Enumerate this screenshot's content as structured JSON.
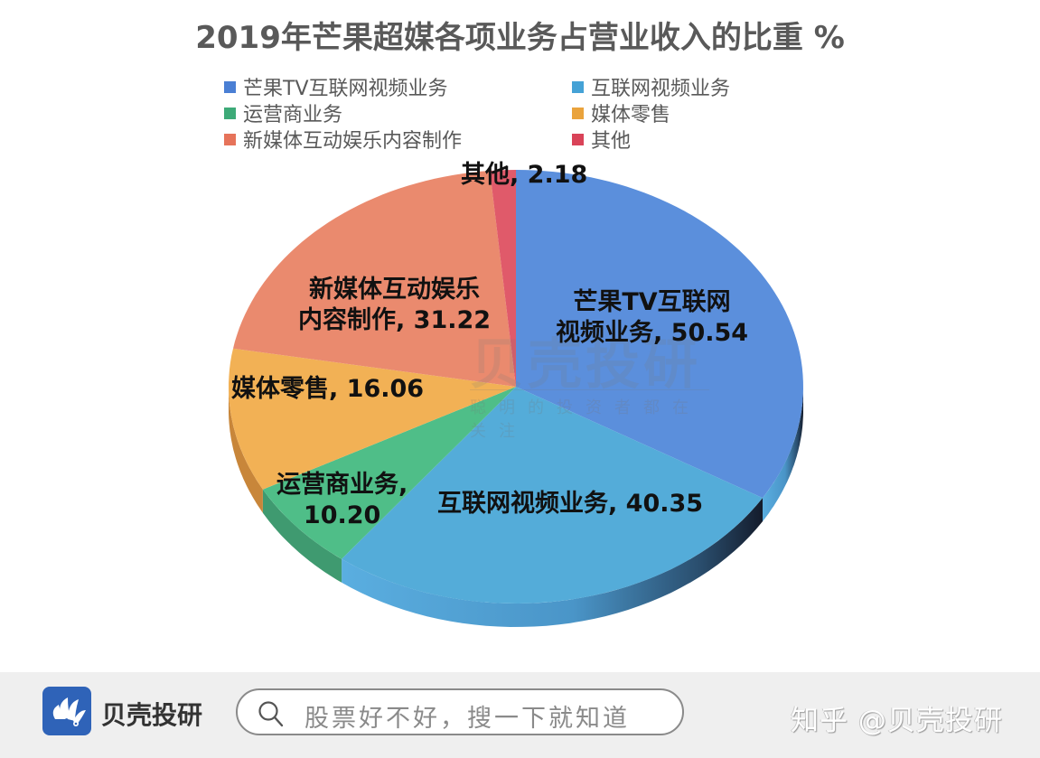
{
  "title": "2019年芒果超媒各项业务占营业收入的比重 %",
  "legend": [
    {
      "label": "芒果TV互联网视频业务",
      "color": "#4a7fd4"
    },
    {
      "label": "互联网视频业务",
      "color": "#45a2d6"
    },
    {
      "label": "运营商业务",
      "color": "#3daa78"
    },
    {
      "label": "媒体零售",
      "color": "#eaa33c"
    },
    {
      "label": "新媒体互动娱乐内容制作",
      "color": "#e6735a"
    },
    {
      "label": "其他",
      "color": "#d94358"
    }
  ],
  "labels": {
    "mango": {
      "line1": "芒果TV互联网",
      "line2": "视频业务, 50.54"
    },
    "internet": {
      "line1": "互联网视频业务, 40.35"
    },
    "operator": {
      "line1": "运营商业务,",
      "line2": "10.20"
    },
    "retail": {
      "line1": "媒体零售, 16.06"
    },
    "newmedia": {
      "line1": "新媒体互动娱乐",
      "line2": "内容制作, 31.22"
    },
    "other": {
      "line1": "其他, 2.18"
    }
  },
  "watermark": {
    "text": "贝壳投研",
    "subtext": "聪明的投资者都在关注"
  },
  "footer": {
    "brand": "贝壳投研",
    "search_placeholder": "股票好不好，搜一下就知道",
    "credit": "知乎 @贝壳投研"
  },
  "chart_data": {
    "type": "pie",
    "title": "2019年芒果超媒各项业务占营业收入的比重 %",
    "categories": [
      "芒果TV互联网视频业务",
      "互联网视频业务",
      "运营商业务",
      "媒体零售",
      "新媒体互动娱乐内容制作",
      "其他"
    ],
    "values": [
      50.54,
      40.35,
      10.2,
      16.06,
      31.22,
      2.18
    ],
    "colors": [
      "#5b8fdc",
      "#54acd9",
      "#4fbe88",
      "#f2b155",
      "#ea8a6e",
      "#e05a6a"
    ],
    "legend_position": "top",
    "data_labels": true,
    "style": "3d"
  }
}
